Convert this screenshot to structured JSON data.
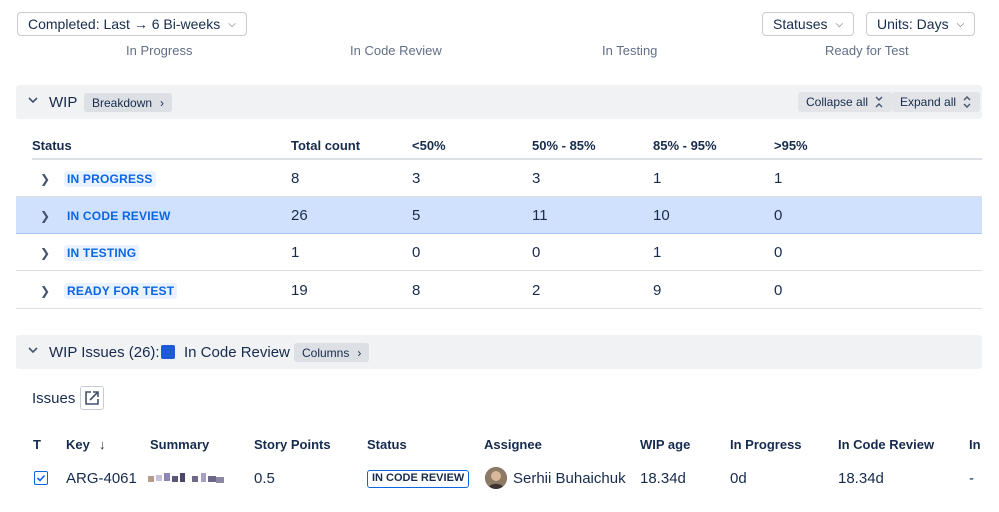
{
  "filters": {
    "completed_label": "Completed: Last → 6 Bi-weeks",
    "statuses_label": "Statuses",
    "units_label": "Units: Days"
  },
  "status_columns": [
    "In Progress",
    "In Code Review",
    "In Testing",
    "Ready for Test"
  ],
  "wip_section": {
    "title": "WIP",
    "breakdown_label": "Breakdown",
    "collapse_all_label": "Collapse all",
    "expand_all_label": "Expand all"
  },
  "wip_table": {
    "headers": [
      "Status",
      "Total count",
      "<50%",
      "50% - 85%",
      "85% - 95%",
      ">95%"
    ],
    "rows": [
      {
        "status": "IN PROGRESS",
        "total": "8",
        "lt50": "3",
        "p50_85": "3",
        "p85_95": "1",
        "gt95": "1",
        "selected": false
      },
      {
        "status": "IN CODE REVIEW",
        "total": "26",
        "lt50": "5",
        "p50_85": "11",
        "p85_95": "10",
        "gt95": "0",
        "selected": true
      },
      {
        "status": "IN TESTING",
        "total": "1",
        "lt50": "0",
        "p50_85": "0",
        "p85_95": "1",
        "gt95": "0",
        "selected": false
      },
      {
        "status": "READY FOR TEST",
        "total": "19",
        "lt50": "8",
        "p50_85": "2",
        "p85_95": "9",
        "gt95": "0",
        "selected": false
      }
    ]
  },
  "wip_issues_section": {
    "title": "WIP Issues (26):",
    "status_name": "In Code Review",
    "status_color": "#1d5bd6",
    "columns_label": "Columns"
  },
  "issues": {
    "title": "Issues",
    "headers": [
      "T",
      "Key",
      "Summary",
      "Story Points",
      "Status",
      "Assignee",
      "WIP age",
      "In Progress",
      "In Code Review",
      "In"
    ],
    "rows": [
      {
        "key": "ARG-4061",
        "story_points": "0.5",
        "status": "IN CODE REVIEW",
        "assignee": "Serhii Buhaichuk",
        "wip_age": "18.34d",
        "in_progress": "0d",
        "in_code_review": "18.34d",
        "in_next": "-"
      }
    ]
  }
}
